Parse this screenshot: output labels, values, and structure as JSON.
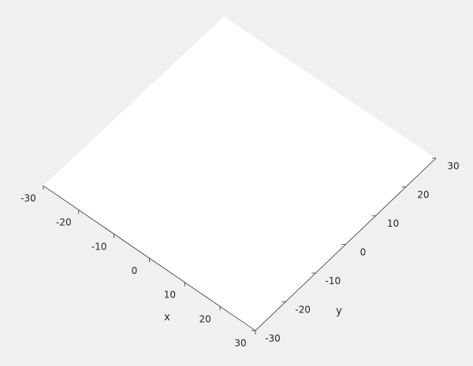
{
  "chart_data": {
    "type": "surface",
    "title": "",
    "xlabel": "x",
    "ylabel": "y",
    "xlim": [
      -30,
      30
    ],
    "ylim": [
      -30,
      30
    ],
    "xticks": [
      -30,
      -20,
      -10,
      0,
      10,
      20,
      30
    ],
    "yticks": [
      -30,
      -20,
      -10,
      0,
      10,
      20,
      30
    ],
    "xtick_labels": [
      "-30",
      "-20",
      "-10",
      "0",
      "10",
      "20",
      "30"
    ],
    "ytick_labels": [
      "-30",
      "-20",
      "-10",
      "0",
      "10",
      "20",
      "30"
    ],
    "grid": false,
    "colors": {
      "figure_background": "#f0f0f0",
      "axes_background": "#ffffff",
      "axis_line": "#262626",
      "text": "#262626"
    }
  }
}
